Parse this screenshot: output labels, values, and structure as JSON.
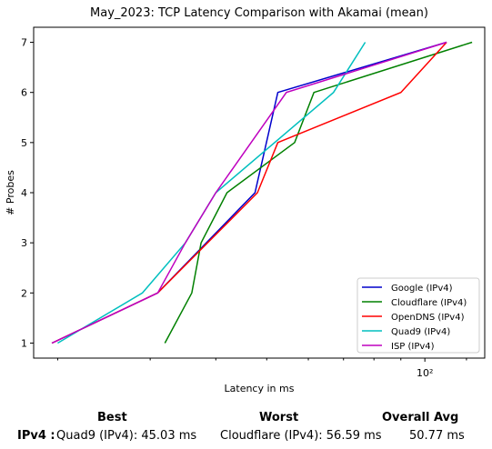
{
  "chart_data": {
    "type": "line",
    "title": "May_2023: TCP Latency Comparison with Akamai (mean)",
    "xlabel": "Latency in ms",
    "ylabel": "# Probes",
    "xscale": "log",
    "xlim": [
      18,
      130
    ],
    "ylim": [
      0.7,
      7.3
    ],
    "x_ticks": [
      100
    ],
    "x_tick_labels": [
      "10²"
    ],
    "y_ticks": [
      1,
      2,
      3,
      4,
      5,
      6,
      7
    ],
    "grid": false,
    "legend_position": "lower right",
    "series": [
      {
        "name": "Google (IPv4)",
        "color": "#0000cc",
        "x": [
          19.5,
          31.0,
          47.5,
          52.5,
          110.0
        ],
        "y": [
          1,
          2,
          4,
          6,
          7
        ]
      },
      {
        "name": "Cloudflare (IPv4)",
        "color": "#008000",
        "x": [
          32.0,
          36.0,
          37.5,
          42.0,
          56.5,
          61.5,
          123.0
        ],
        "y": [
          1,
          2,
          3,
          4,
          5,
          6,
          7
        ]
      },
      {
        "name": "OpenDNS (IPv4)",
        "color": "#ff0000",
        "x": [
          19.5,
          31.0,
          48.0,
          52.5,
          90.0,
          110.0
        ],
        "y": [
          1,
          2,
          4,
          5,
          6,
          7
        ]
      },
      {
        "name": "Quad9 (IPv4)",
        "color": "#00bfbf",
        "x": [
          20.0,
          29.0,
          35.0,
          40.0,
          67.0,
          77.0
        ],
        "y": [
          1,
          2,
          3,
          4,
          6,
          7
        ]
      },
      {
        "name": "ISP (IPv4)",
        "color": "#bf00bf",
        "x": [
          19.5,
          31.0,
          35.0,
          40.0,
          54.5,
          110.0
        ],
        "y": [
          1,
          2,
          3,
          4,
          6,
          7
        ]
      }
    ]
  },
  "summary": {
    "best_header": "Best",
    "worst_header": "Worst",
    "avg_header": "Overall Avg",
    "row_label": "IPv4 :",
    "best": "Quad9 (IPv4): 45.03 ms",
    "worst": "Cloudflare (IPv4): 56.59 ms",
    "avg": "50.77 ms"
  }
}
